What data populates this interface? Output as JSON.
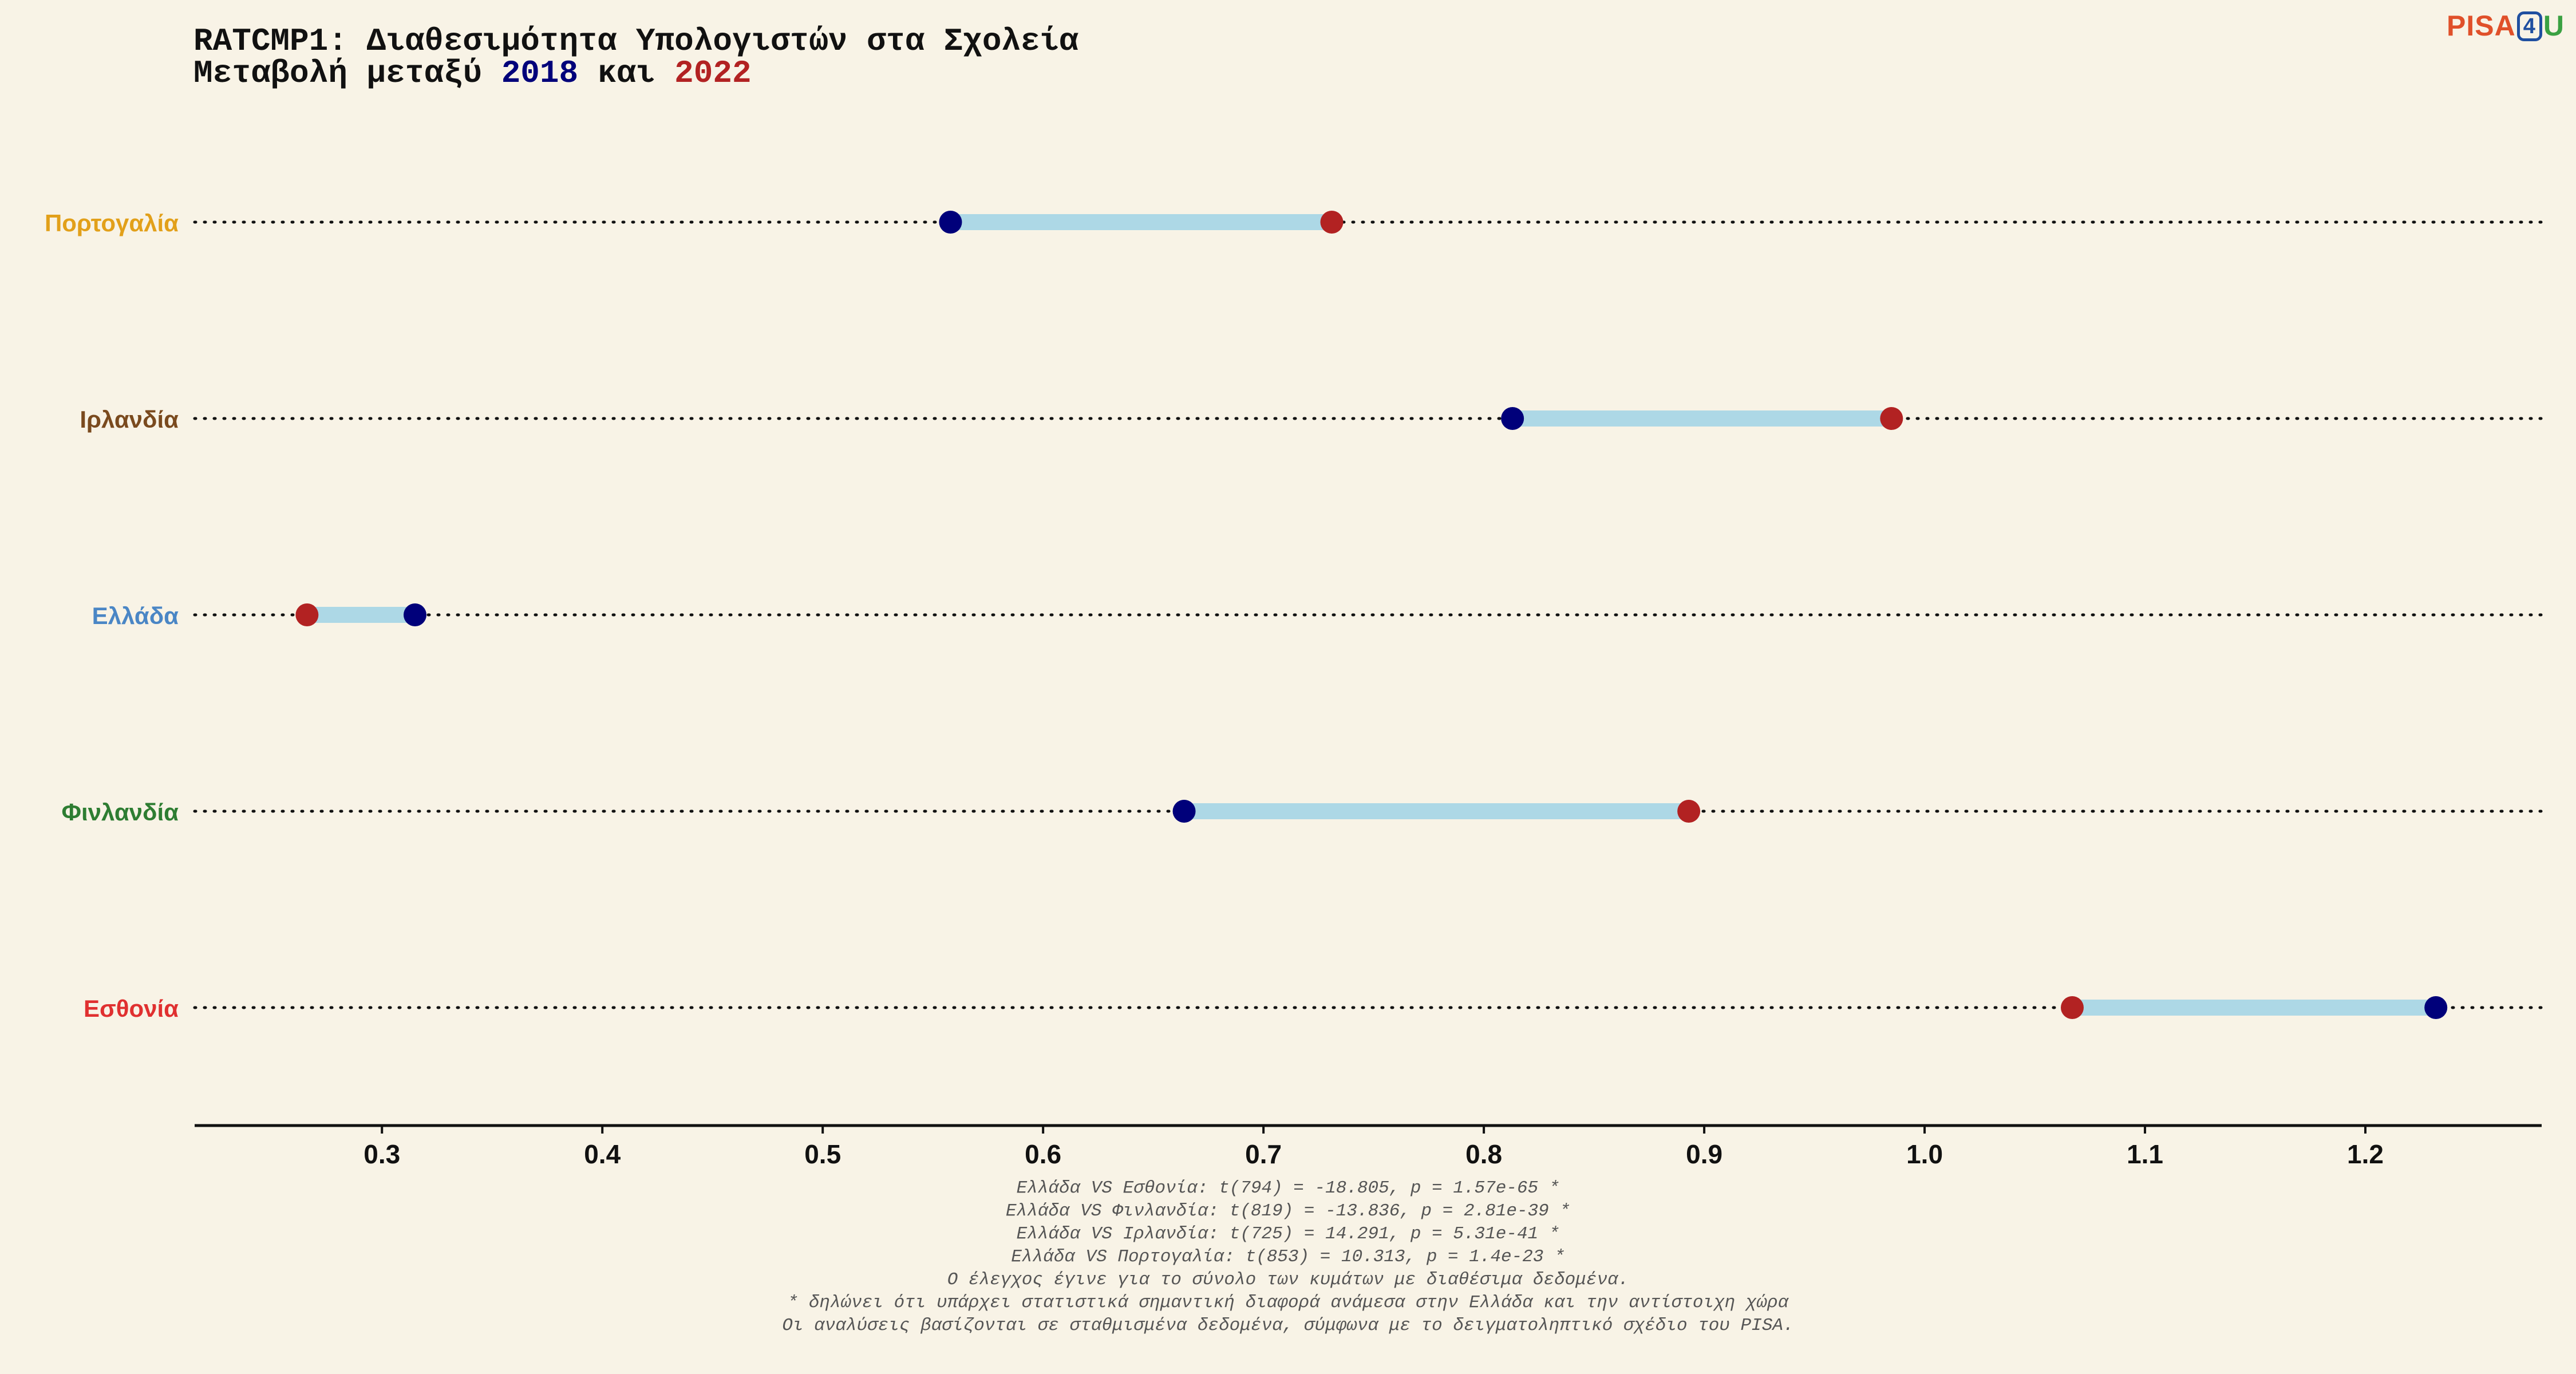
{
  "title": {
    "line1": "RATCMP1: Διαθεσιμότητα Υπολογιστών στα Σχολεία",
    "line2_prefix": "Μεταβολή μεταξύ ",
    "year_a": "2018",
    "line2_middle": " και ",
    "year_b": "2022"
  },
  "logo": {
    "part1": "PISA",
    "part2": "4",
    "part3": "U"
  },
  "colors": {
    "background": "#f8f3e6",
    "year_2018": "#00007a",
    "year_2022": "#b22222",
    "connector": "#add8e6"
  },
  "chart_data": {
    "type": "dumbbell",
    "xlim": [
      0.215,
      1.28
    ],
    "xticks": [
      0.3,
      0.4,
      0.5,
      0.6,
      0.7,
      0.8,
      0.9,
      1.0,
      1.1,
      1.2
    ],
    "xtick_labels": [
      "0.3",
      "0.4",
      "0.5",
      "0.6",
      "0.7",
      "0.8",
      "0.9",
      "1.0",
      "1.1",
      "1.2"
    ],
    "grid": "dotted row lines",
    "countries": [
      {
        "name": "Πορτογαλία",
        "label_color": "#e2a01a",
        "v2018": 0.558,
        "v2022": 0.731
      },
      {
        "name": "Ιρλανδία",
        "label_color": "#7a4a1e",
        "v2018": 0.813,
        "v2022": 0.985
      },
      {
        "name": "Ελλάδα",
        "label_color": "#4a86c5",
        "v2018": 0.315,
        "v2022": 0.266
      },
      {
        "name": "Φινλανδία",
        "label_color": "#2e7d32",
        "v2018": 0.664,
        "v2022": 0.893
      },
      {
        "name": "Εσθονία",
        "label_color": "#e03030",
        "v2018": 1.232,
        "v2022": 1.067
      }
    ]
  },
  "notes": [
    "Ελλάδα VS Εσθονία: t(794) = -18.805, p = 1.57e-65 *",
    "Ελλάδα VS Φινλανδία: t(819) = -13.836, p = 2.81e-39 *",
    "Ελλάδα VS Ιρλανδία: t(725) = 14.291, p = 5.31e-41 *",
    "Ελλάδα VS Πορτογαλία: t(853) = 10.313, p = 1.4e-23 *",
    "Ο έλεγχος έγινε για το σύνολο των κυμάτων με διαθέσιμα δεδομένα.",
    "* δηλώνει ότι υπάρχει στατιστικά σημαντική διαφορά ανάμεσα στην Ελλάδα και την αντίστοιχη χώρα",
    "Οι αναλύσεις βασίζονται σε σταθμισμένα δεδομένα, σύμφωνα με το δειγματοληπτικό σχέδιο του PISA."
  ]
}
